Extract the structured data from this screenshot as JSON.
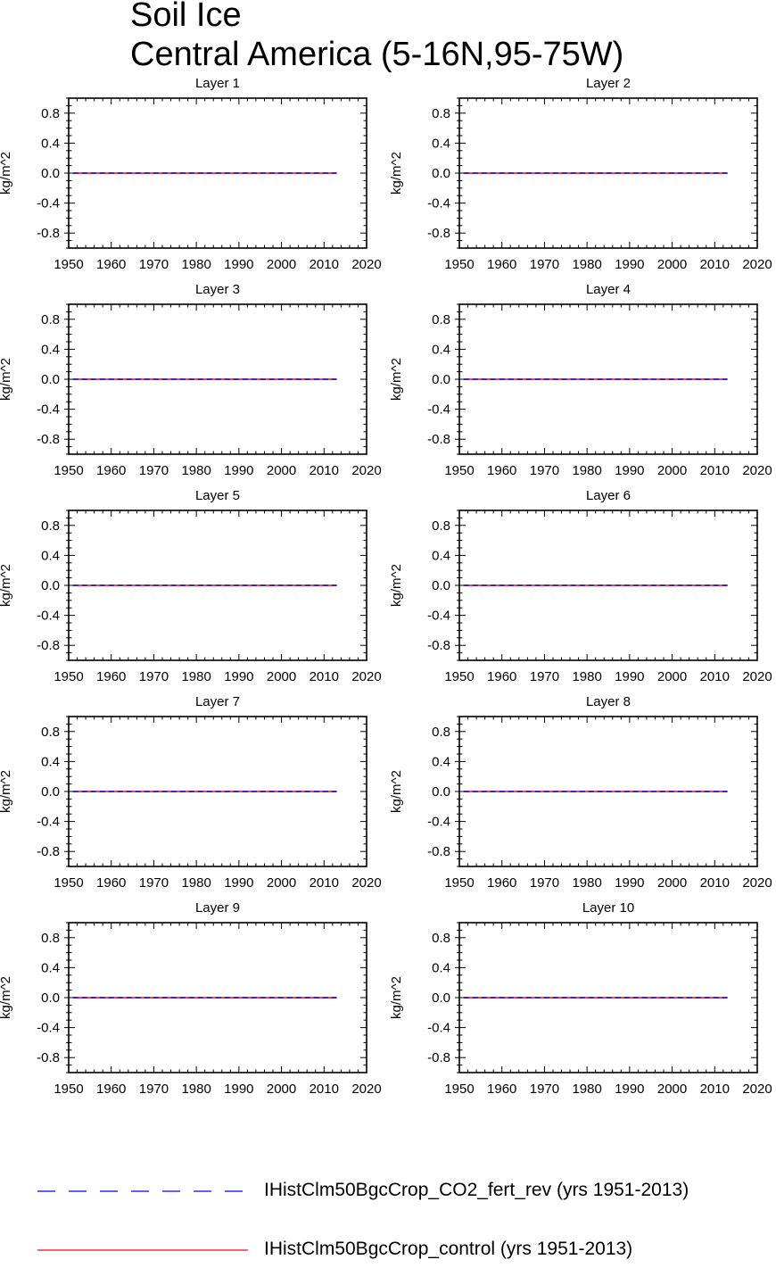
{
  "title": "Soil Ice",
  "subtitle": "Central America (5-16N,95-75W)",
  "colors": {
    "series_1": "#0000ff",
    "series_2": "#ff0000",
    "axis": "#000000"
  },
  "chart_data": {
    "type": "line",
    "ylabel": "kg/m^2",
    "xlim": [
      1950,
      2020
    ],
    "ylim": [
      -1.0,
      1.0
    ],
    "xticks": [
      1950,
      1960,
      1970,
      1980,
      1990,
      2000,
      2010,
      2020
    ],
    "yticks": [
      0.8,
      0.4,
      0.0,
      -0.4,
      -0.8
    ],
    "ytick_labels": [
      "0.8",
      "0.4",
      "0.0",
      "-0.4",
      "-0.8"
    ],
    "grid": false,
    "legend_position": "bottom",
    "series": [
      {
        "name": "IHistClm50BgcCrop_CO2_fert_rev (yrs 1951-2013)",
        "style": "dashed",
        "color": "#0000ff",
        "x": [
          1951,
          2013
        ],
        "values": [
          0.0,
          0.0
        ]
      },
      {
        "name": "IHistClm50BgcCrop_control (yrs 1951-2013)",
        "style": "solid",
        "color": "#ff0000",
        "x": [
          1951,
          2013
        ],
        "values": [
          0.0,
          0.0
        ]
      }
    ],
    "panels": [
      {
        "title": "Layer 1"
      },
      {
        "title": "Layer 2"
      },
      {
        "title": "Layer 3"
      },
      {
        "title": "Layer 4"
      },
      {
        "title": "Layer 5"
      },
      {
        "title": "Layer 6"
      },
      {
        "title": "Layer 7"
      },
      {
        "title": "Layer 8"
      },
      {
        "title": "Layer 9"
      },
      {
        "title": "Layer 10"
      }
    ]
  }
}
